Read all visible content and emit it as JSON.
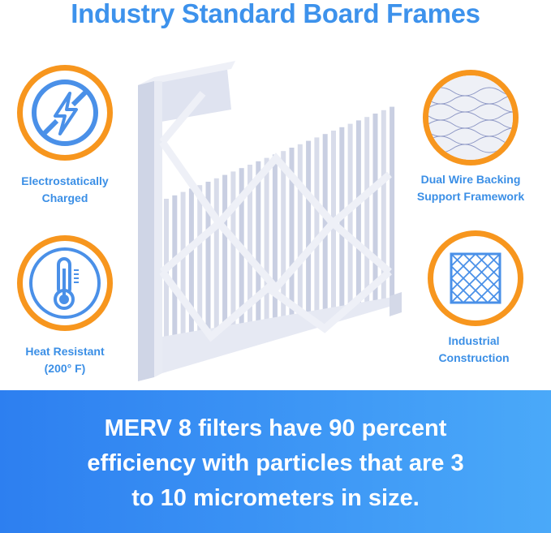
{
  "title": "Industry Standard Board Frames",
  "features": [
    {
      "icon": "no-static-icon",
      "label_lines": [
        "Electrostatically",
        "Charged"
      ]
    },
    {
      "icon": "thermometer-icon",
      "label_lines": [
        "Heat Resistant",
        "(200° F)"
      ]
    },
    {
      "icon": "wire-mesh-icon",
      "label_lines": [
        "Dual Wire Backing",
        "Support Framework"
      ]
    },
    {
      "icon": "grid-frame-icon",
      "label_lines": [
        "Industrial",
        "Construction"
      ]
    }
  ],
  "banner": {
    "lines": [
      "MERV 8 filters have 90 percent",
      "efficiency with particles that are 3",
      "to 10 micrometers in size."
    ]
  },
  "colors": {
    "title": "#3d92ec",
    "ring": "#f7961e",
    "icon": "#4a90e8",
    "banner_start": "#2d7ff0",
    "banner_end": "#4aa9f9"
  }
}
